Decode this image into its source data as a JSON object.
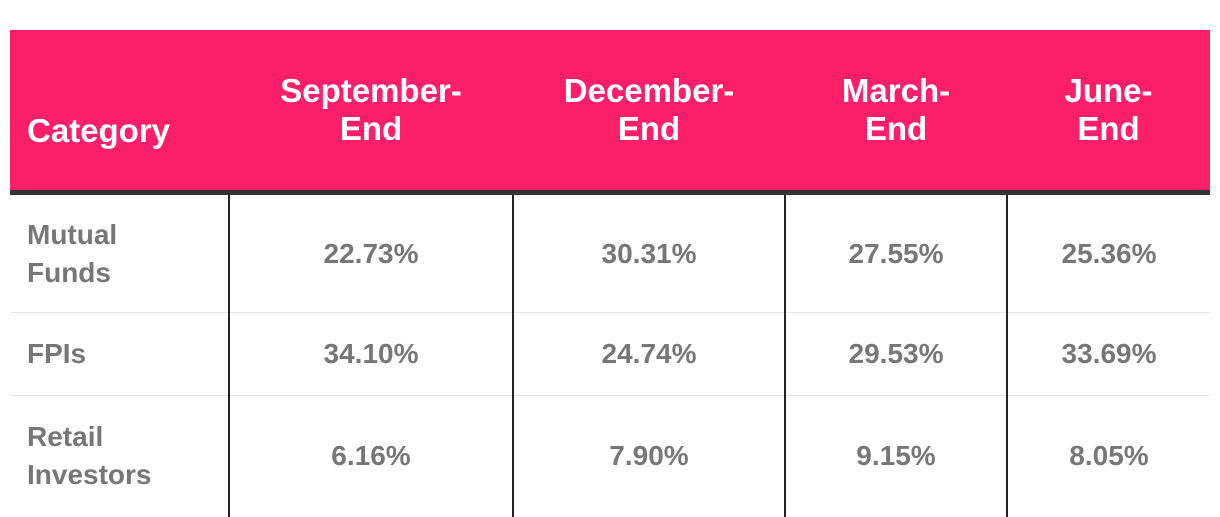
{
  "table": {
    "header": [
      "Category",
      "September-End",
      "December-End",
      "March-End",
      "June-End"
    ],
    "rows": [
      [
        "Mutual Funds",
        "22.73%",
        "30.31%",
        "27.55%",
        "25.36%"
      ],
      [
        "FPIs",
        "34.10%",
        "24.74%",
        "29.53%",
        "33.69%"
      ],
      [
        "Retail Investors",
        "6.16%",
        "7.90%",
        "9.15%",
        "8.05%"
      ]
    ]
  }
}
